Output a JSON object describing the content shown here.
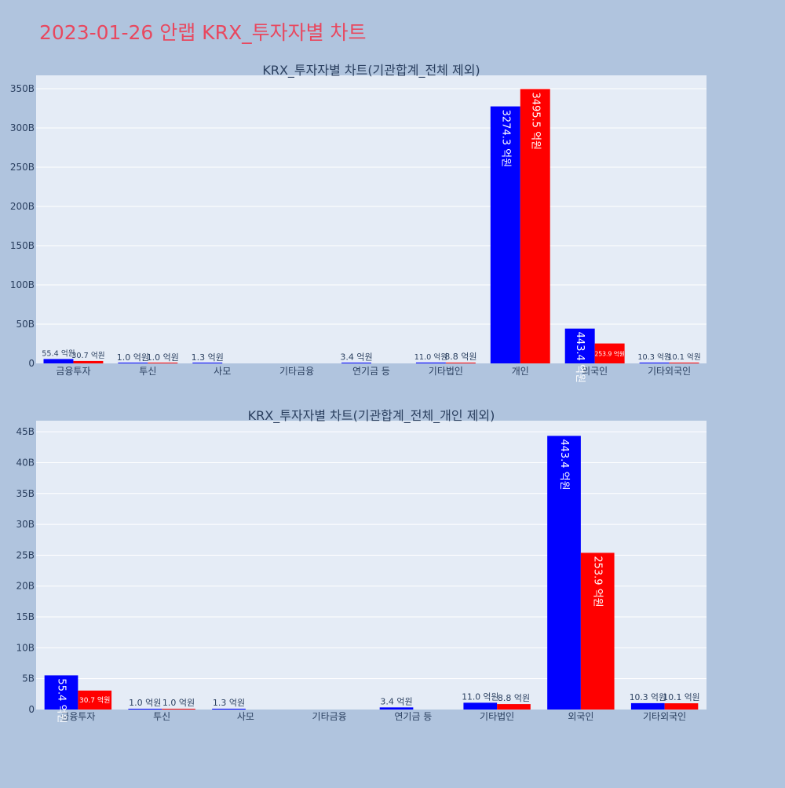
{
  "page_title": "2023-01-26 안랩 KRX_투자자별 차트",
  "colors": {
    "background": "#b0c4de",
    "plot_background": "#e5ecf6",
    "grid": "#ffffff",
    "title": "#e8485f",
    "text": "#2a3f5f",
    "buy": "#0000ff",
    "sell": "#ff0000"
  },
  "chart_data": [
    {
      "type": "bar",
      "title": "KRX_투자자별 차트(기관합계_전체 제외)",
      "categories": [
        "금융투자",
        "투신",
        "사모",
        "기타금융",
        "연기금 등",
        "기타법인",
        "개인",
        "외국인",
        "기타외국인"
      ],
      "series": [
        {
          "color": "#0000ff",
          "values": [
            5540000000,
            100000000,
            130000000,
            0,
            340000000,
            1100000000,
            327430000000,
            44340000000,
            1030000000
          ],
          "labels": [
            "55.4 억원",
            "1.0 억원",
            "1.3 억원",
            "",
            "3.4 억원",
            "11.0 억원",
            "3274.3 억원",
            "443.4 억원",
            "10.3 억원"
          ]
        },
        {
          "color": "#ff0000",
          "values": [
            3070000000,
            100000000,
            0,
            0,
            0,
            880000000,
            349550000000,
            25390000000,
            1010000000
          ],
          "labels": [
            "30.7 억원",
            "1.0 억원",
            "",
            "",
            "",
            "8.8 억원",
            "3495.5 억원",
            "253.9 억원",
            "10.1 억원"
          ]
        }
      ],
      "ylim": [
        0,
        367000000000
      ],
      "yticks": [
        0,
        50000000000,
        100000000000,
        150000000000,
        200000000000,
        250000000000,
        300000000000,
        350000000000
      ],
      "ytick_labels": [
        "0",
        "50B",
        "100B",
        "150B",
        "200B",
        "250B",
        "300B",
        "350B"
      ],
      "grid": true,
      "legend": "none"
    },
    {
      "type": "bar",
      "title": "KRX_투자자별 차트(기관합계_전체_개인 제외)",
      "categories": [
        "금융투자",
        "투신",
        "사모",
        "기타금융",
        "연기금 등",
        "기타법인",
        "외국인",
        "기타외국인"
      ],
      "series": [
        {
          "color": "#0000ff",
          "values": [
            5540000000,
            100000000,
            130000000,
            0,
            340000000,
            1100000000,
            44340000000,
            1030000000
          ],
          "labels": [
            "55.4 억원",
            "1.0 억원",
            "1.3 억원",
            "",
            "3.4 억원",
            "11.0 억원",
            "443.4 억원",
            "10.3 억원"
          ]
        },
        {
          "color": "#ff0000",
          "values": [
            3070000000,
            100000000,
            0,
            0,
            0,
            880000000,
            25390000000,
            1010000000
          ],
          "labels": [
            "30.7 억원",
            "1.0 억원",
            "",
            "",
            "",
            "8.8 억원",
            "253.9 억원",
            "10.1 억원"
          ]
        }
      ],
      "ylim": [
        0,
        46800000000
      ],
      "yticks": [
        0,
        5000000000,
        10000000000,
        15000000000,
        20000000000,
        25000000000,
        30000000000,
        35000000000,
        40000000000,
        45000000000
      ],
      "ytick_labels": [
        "0",
        "5B",
        "10B",
        "15B",
        "20B",
        "25B",
        "30B",
        "35B",
        "40B",
        "45B"
      ],
      "grid": true,
      "legend": "none"
    }
  ]
}
